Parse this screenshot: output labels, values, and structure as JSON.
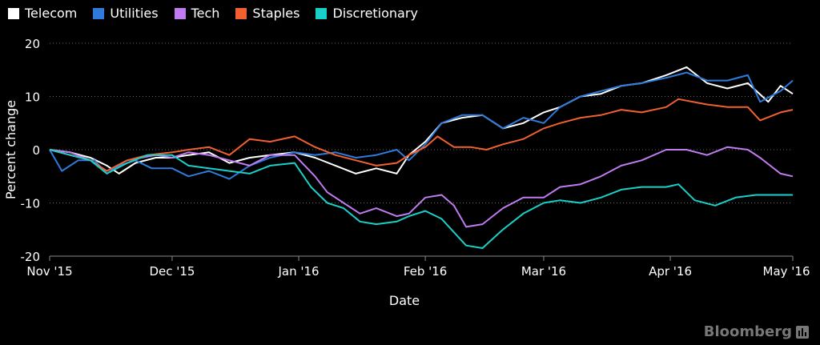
{
  "chart_data": {
    "type": "line",
    "xlabel": "Date",
    "ylabel": "Percent change",
    "ylim": [
      -20,
      20
    ],
    "yticks": [
      -20,
      -10,
      0,
      10,
      20
    ],
    "ytick_labels": [
      "-20",
      "-10",
      "0",
      "10",
      "20"
    ],
    "xlim": [
      "2015-11-01",
      "2016-05-01"
    ],
    "xticks": [
      "2015-11-01",
      "2015-12-01",
      "2016-01-01",
      "2016-02-01",
      "2016-03-01",
      "2016-04-01",
      "2016-05-01"
    ],
    "xtick_labels": [
      "Nov '15",
      "Dec '15",
      "Jan '16",
      "Feb '16",
      "Mar '16",
      "Apr '16",
      "May '16"
    ],
    "grid": "horizontal-dotted",
    "legend_position": "top-left",
    "series": [
      {
        "name": "Telecom",
        "color": "#ffffff",
        "points": [
          [
            "2015-11-01",
            0
          ],
          [
            "2015-11-06",
            -0.5
          ],
          [
            "2015-11-11",
            -1.5
          ],
          [
            "2015-11-15",
            -3
          ],
          [
            "2015-11-18",
            -4.5
          ],
          [
            "2015-11-22",
            -2.5
          ],
          [
            "2015-11-27",
            -1.5
          ],
          [
            "2015-12-01",
            -1.5
          ],
          [
            "2015-12-05",
            -1
          ],
          [
            "2015-12-10",
            -0.5
          ],
          [
            "2015-12-15",
            -2.5
          ],
          [
            "2015-12-20",
            -1.5
          ],
          [
            "2015-12-25",
            -1
          ],
          [
            "2015-12-31",
            -0.5
          ],
          [
            "2016-01-05",
            -1.5
          ],
          [
            "2016-01-10",
            -3
          ],
          [
            "2016-01-15",
            -4.5
          ],
          [
            "2016-01-20",
            -3.5
          ],
          [
            "2016-01-25",
            -4.5
          ],
          [
            "2016-01-28",
            -1
          ],
          [
            "2016-02-01",
            1.5
          ],
          [
            "2016-02-05",
            5
          ],
          [
            "2016-02-10",
            6
          ],
          [
            "2016-02-15",
            6.5
          ],
          [
            "2016-02-20",
            4
          ],
          [
            "2016-02-25",
            5
          ],
          [
            "2016-03-01",
            7
          ],
          [
            "2016-03-05",
            8
          ],
          [
            "2016-03-10",
            10
          ],
          [
            "2016-03-15",
            10.5
          ],
          [
            "2016-03-20",
            12
          ],
          [
            "2016-03-25",
            12.5
          ],
          [
            "2016-03-31",
            14
          ],
          [
            "2016-04-05",
            15.5
          ],
          [
            "2016-04-10",
            12.5
          ],
          [
            "2016-04-15",
            11.5
          ],
          [
            "2016-04-20",
            12.5
          ],
          [
            "2016-04-25",
            9
          ],
          [
            "2016-04-28",
            12
          ],
          [
            "2016-05-01",
            10.5
          ]
        ]
      },
      {
        "name": "Utilities",
        "color": "#2e7bdc",
        "points": [
          [
            "2015-11-01",
            0
          ],
          [
            "2015-11-04",
            -4
          ],
          [
            "2015-11-08",
            -2
          ],
          [
            "2015-11-12",
            -2
          ],
          [
            "2015-11-15",
            -4.5
          ],
          [
            "2015-11-18",
            -3
          ],
          [
            "2015-11-22",
            -2
          ],
          [
            "2015-11-26",
            -3.5
          ],
          [
            "2015-12-01",
            -3.5
          ],
          [
            "2015-12-05",
            -5
          ],
          [
            "2015-12-10",
            -4
          ],
          [
            "2015-12-15",
            -5.5
          ],
          [
            "2015-12-20",
            -3
          ],
          [
            "2015-12-25",
            -1.5
          ],
          [
            "2015-12-31",
            -0.5
          ],
          [
            "2016-01-05",
            -1
          ],
          [
            "2016-01-10",
            -0.5
          ],
          [
            "2016-01-15",
            -1.5
          ],
          [
            "2016-01-20",
            -1
          ],
          [
            "2016-01-25",
            0
          ],
          [
            "2016-01-28",
            -2
          ],
          [
            "2016-02-01",
            1
          ],
          [
            "2016-02-05",
            5
          ],
          [
            "2016-02-10",
            6.5
          ],
          [
            "2016-02-15",
            6.5
          ],
          [
            "2016-02-20",
            4
          ],
          [
            "2016-02-25",
            6
          ],
          [
            "2016-03-01",
            5
          ],
          [
            "2016-03-05",
            8
          ],
          [
            "2016-03-10",
            10
          ],
          [
            "2016-03-15",
            11
          ],
          [
            "2016-03-20",
            12
          ],
          [
            "2016-03-25",
            12.5
          ],
          [
            "2016-03-31",
            13.5
          ],
          [
            "2016-04-05",
            14.5
          ],
          [
            "2016-04-10",
            13
          ],
          [
            "2016-04-15",
            13
          ],
          [
            "2016-04-20",
            14
          ],
          [
            "2016-04-23",
            9
          ],
          [
            "2016-04-28",
            11
          ],
          [
            "2016-05-01",
            13
          ]
        ]
      },
      {
        "name": "Tech",
        "color": "#c07bf0",
        "points": [
          [
            "2015-11-01",
            0
          ],
          [
            "2015-11-06",
            -0.5
          ],
          [
            "2015-11-11",
            -2
          ],
          [
            "2015-11-15",
            -4
          ],
          [
            "2015-11-20",
            -2
          ],
          [
            "2015-11-27",
            -1
          ],
          [
            "2015-12-01",
            -1.5
          ],
          [
            "2015-12-05",
            -0.5
          ],
          [
            "2015-12-10",
            -1
          ],
          [
            "2015-12-15",
            -2
          ],
          [
            "2015-12-20",
            -3
          ],
          [
            "2015-12-25",
            -1
          ],
          [
            "2015-12-31",
            -1
          ],
          [
            "2016-01-05",
            -5
          ],
          [
            "2016-01-08",
            -8
          ],
          [
            "2016-01-12",
            -10
          ],
          [
            "2016-01-16",
            -12
          ],
          [
            "2016-01-20",
            -11
          ],
          [
            "2016-01-25",
            -12.5
          ],
          [
            "2016-01-28",
            -12
          ],
          [
            "2016-02-01",
            -9
          ],
          [
            "2016-02-05",
            -8.5
          ],
          [
            "2016-02-08",
            -10.5
          ],
          [
            "2016-02-11",
            -14.5
          ],
          [
            "2016-02-15",
            -14
          ],
          [
            "2016-02-20",
            -11
          ],
          [
            "2016-02-25",
            -9
          ],
          [
            "2016-03-01",
            -9
          ],
          [
            "2016-03-05",
            -7
          ],
          [
            "2016-03-10",
            -6.5
          ],
          [
            "2016-03-15",
            -5
          ],
          [
            "2016-03-20",
            -3
          ],
          [
            "2016-03-25",
            -2
          ],
          [
            "2016-03-31",
            0
          ],
          [
            "2016-04-05",
            0
          ],
          [
            "2016-04-10",
            -1
          ],
          [
            "2016-04-15",
            0.5
          ],
          [
            "2016-04-20",
            0
          ],
          [
            "2016-04-23",
            -1.5
          ],
          [
            "2016-04-28",
            -4.5
          ],
          [
            "2016-05-01",
            -5
          ]
        ]
      },
      {
        "name": "Staples",
        "color": "#f06030",
        "points": [
          [
            "2015-11-01",
            0
          ],
          [
            "2015-11-06",
            -1
          ],
          [
            "2015-11-11",
            -2
          ],
          [
            "2015-11-15",
            -4
          ],
          [
            "2015-11-20",
            -2
          ],
          [
            "2015-11-25",
            -1
          ],
          [
            "2015-12-01",
            -0.5
          ],
          [
            "2015-12-05",
            0
          ],
          [
            "2015-12-10",
            0.5
          ],
          [
            "2015-12-15",
            -1
          ],
          [
            "2015-12-20",
            2
          ],
          [
            "2015-12-25",
            1.5
          ],
          [
            "2015-12-31",
            2.5
          ],
          [
            "2016-01-05",
            0.5
          ],
          [
            "2016-01-10",
            -1
          ],
          [
            "2016-01-15",
            -2
          ],
          [
            "2016-01-20",
            -3
          ],
          [
            "2016-01-25",
            -2.5
          ],
          [
            "2016-01-28",
            -1
          ],
          [
            "2016-02-01",
            0.5
          ],
          [
            "2016-02-04",
            2.5
          ],
          [
            "2016-02-08",
            0.5
          ],
          [
            "2016-02-12",
            0.5
          ],
          [
            "2016-02-16",
            0
          ],
          [
            "2016-02-20",
            1
          ],
          [
            "2016-02-25",
            2
          ],
          [
            "2016-03-01",
            4
          ],
          [
            "2016-03-05",
            5
          ],
          [
            "2016-03-10",
            6
          ],
          [
            "2016-03-15",
            6.5
          ],
          [
            "2016-03-20",
            7.5
          ],
          [
            "2016-03-25",
            7
          ],
          [
            "2016-03-31",
            8
          ],
          [
            "2016-04-03",
            9.5
          ],
          [
            "2016-04-10",
            8.5
          ],
          [
            "2016-04-15",
            8
          ],
          [
            "2016-04-20",
            8
          ],
          [
            "2016-04-23",
            5.5
          ],
          [
            "2016-04-28",
            7
          ],
          [
            "2016-05-01",
            7.5
          ]
        ]
      },
      {
        "name": "Discretionary",
        "color": "#19d0c8",
        "points": [
          [
            "2015-11-01",
            0
          ],
          [
            "2015-11-06",
            -1
          ],
          [
            "2015-11-11",
            -2
          ],
          [
            "2015-11-15",
            -4.5
          ],
          [
            "2015-11-20",
            -2.5
          ],
          [
            "2015-11-25",
            -1
          ],
          [
            "2015-12-01",
            -1
          ],
          [
            "2015-12-05",
            -3
          ],
          [
            "2015-12-10",
            -3.5
          ],
          [
            "2015-12-15",
            -4
          ],
          [
            "2015-12-20",
            -4.5
          ],
          [
            "2015-12-25",
            -3
          ],
          [
            "2015-12-31",
            -2.5
          ],
          [
            "2016-01-04",
            -7
          ],
          [
            "2016-01-08",
            -10
          ],
          [
            "2016-01-12",
            -11
          ],
          [
            "2016-01-16",
            -13.5
          ],
          [
            "2016-01-20",
            -14
          ],
          [
            "2016-01-25",
            -13.5
          ],
          [
            "2016-01-28",
            -12.5
          ],
          [
            "2016-02-01",
            -11.5
          ],
          [
            "2016-02-05",
            -13
          ],
          [
            "2016-02-08",
            -15.5
          ],
          [
            "2016-02-11",
            -18
          ],
          [
            "2016-02-15",
            -18.5
          ],
          [
            "2016-02-20",
            -15
          ],
          [
            "2016-02-25",
            -12
          ],
          [
            "2016-03-01",
            -10
          ],
          [
            "2016-03-05",
            -9.5
          ],
          [
            "2016-03-10",
            -10
          ],
          [
            "2016-03-15",
            -9
          ],
          [
            "2016-03-20",
            -7.5
          ],
          [
            "2016-03-25",
            -7
          ],
          [
            "2016-03-31",
            -7
          ],
          [
            "2016-04-03",
            -6.5
          ],
          [
            "2016-04-07",
            -9.5
          ],
          [
            "2016-04-12",
            -10.5
          ],
          [
            "2016-04-17",
            -9
          ],
          [
            "2016-04-22",
            -8.5
          ],
          [
            "2016-04-28",
            -8.5
          ],
          [
            "2016-05-01",
            -8.5
          ]
        ]
      }
    ]
  },
  "brand": {
    "name": "Bloomberg"
  }
}
